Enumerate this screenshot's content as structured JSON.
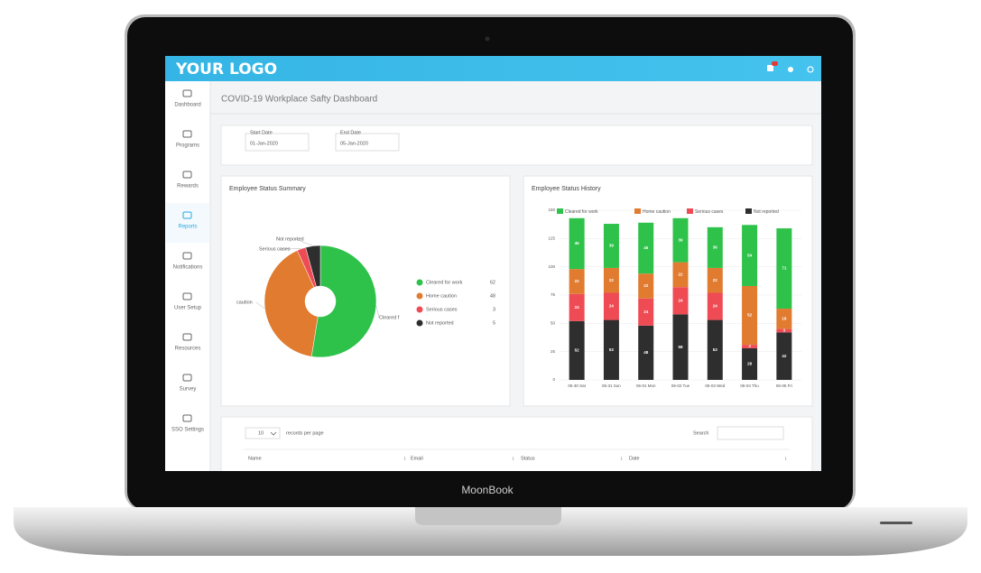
{
  "laptop_brand": "MoonBook",
  "header": {
    "logo": "YOUR LOGO"
  },
  "sidebar": {
    "items": [
      "Dashboard",
      "Programs",
      "Rewards",
      "Reports",
      "Notifications",
      "User Setup",
      "Resources",
      "Survey",
      "SSO Settings"
    ],
    "active": "Reports"
  },
  "page_title": "COVID-19 Workplace Safty Dashboard",
  "date_filter": {
    "start_label": "Start Date",
    "start_value": "01-Jan-2020",
    "end_label": "End Date",
    "end_value": "05-Jan-2020"
  },
  "chart_data": [
    {
      "type": "pie",
      "title": "Employee Status Summary",
      "categories": [
        "Cleared for work",
        "Home caution",
        "Serious cases",
        "Not reported"
      ],
      "slice_labels": [
        "Cleared f",
        "caution",
        "Serious cases",
        "Not reported"
      ],
      "values": [
        62,
        48,
        3,
        5
      ],
      "colors": [
        "#2ec24a",
        "#e07b30",
        "#ef4b55",
        "#2e2e2e"
      ],
      "donut": true
    },
    {
      "type": "stacked-bar",
      "title": "Employee Status History",
      "categories": [
        "05-30 Sat",
        "05-31 Sun",
        "06-01 Mon",
        "06-02 Tue",
        "06-03 Wed",
        "06-04 Thu",
        "06-05 Fri"
      ],
      "series": [
        {
          "name": "Cleared for work",
          "color": "#2ec24a",
          "values": [
            45,
            39,
            45,
            39,
            36,
            54,
            71
          ]
        },
        {
          "name": "Home caution",
          "color": "#e07b30",
          "values": [
            22,
            22,
            22,
            22,
            22,
            52,
            18
          ]
        },
        {
          "name": "Serious cases",
          "color": "#ef4b55",
          "values": [
            24,
            24,
            24,
            24,
            24,
            3,
            3
          ]
        },
        {
          "name": "Not reported",
          "color": "#2e2e2e",
          "values": [
            52,
            53,
            48,
            58,
            53,
            28,
            42
          ]
        }
      ],
      "ylim": [
        0,
        150
      ],
      "yticks": [
        0,
        25,
        50,
        75,
        100,
        125,
        150
      ],
      "grid": true
    }
  ],
  "table": {
    "page_size": "10",
    "page_size_label": "records per page",
    "search_label": "Search",
    "columns": [
      "Name",
      "Email",
      "Status",
      "Date"
    ]
  }
}
